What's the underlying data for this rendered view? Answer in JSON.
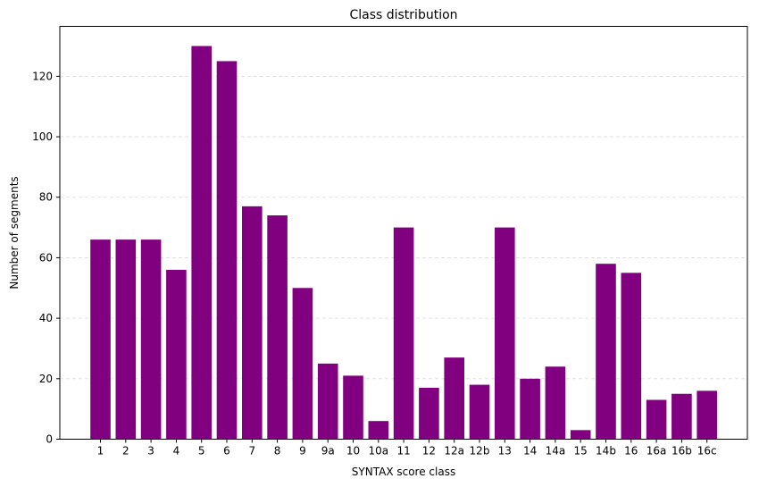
{
  "chart_data": {
    "type": "bar",
    "title": "Class distribution",
    "xlabel": "SYNTAX score class",
    "ylabel": "Number of segments",
    "categories": [
      "1",
      "2",
      "3",
      "4",
      "5",
      "6",
      "7",
      "8",
      "9",
      "9a",
      "10",
      "10a",
      "11",
      "12",
      "12a",
      "12b",
      "13",
      "14",
      "14a",
      "15",
      "14b",
      "16",
      "16a",
      "16b",
      "16c"
    ],
    "values": [
      66,
      66,
      66,
      56,
      130,
      125,
      77,
      74,
      50,
      25,
      21,
      6,
      70,
      17,
      27,
      18,
      70,
      20,
      24,
      3,
      58,
      55,
      13,
      15,
      16
    ],
    "ylim": [
      0,
      136.5
    ],
    "yticks": [
      0,
      20,
      40,
      60,
      80,
      100,
      120
    ],
    "grid": "horizontal dashed",
    "colors": {
      "bar": "#800080",
      "grid": "#d9d9d9",
      "axis": "#000000"
    }
  }
}
